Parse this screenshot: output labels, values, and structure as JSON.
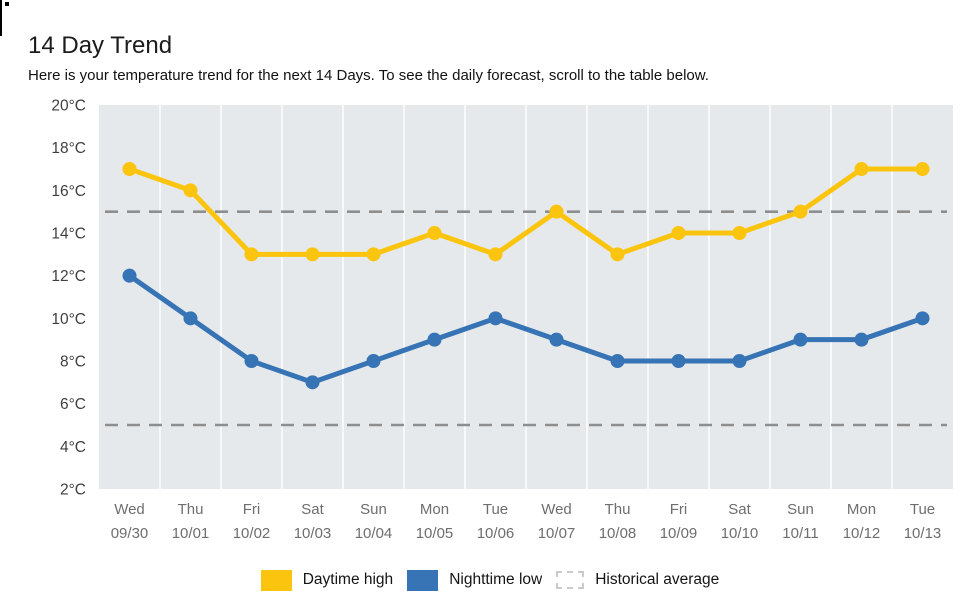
{
  "header": {
    "title": "14 Day Trend",
    "subtitle": "Here is your temperature trend for the next 14 Days. To see the daily forecast, scroll to the table below."
  },
  "legend": [
    {
      "label": "Daytime high",
      "type": "solid",
      "color": "#fbc40f"
    },
    {
      "label": "Nighttime low",
      "type": "solid",
      "color": "#3674b5"
    },
    {
      "label": "Historical average",
      "type": "dashed",
      "color": "#cbcbcb"
    }
  ],
  "chart_data": {
    "type": "line",
    "title": "14 Day Trend",
    "categories": [
      {
        "day": "Wed",
        "date": "09/30"
      },
      {
        "day": "Thu",
        "date": "10/01"
      },
      {
        "day": "Fri",
        "date": "10/02"
      },
      {
        "day": "Sat",
        "date": "10/03"
      },
      {
        "day": "Sun",
        "date": "10/04"
      },
      {
        "day": "Mon",
        "date": "10/05"
      },
      {
        "day": "Tue",
        "date": "10/06"
      },
      {
        "day": "Wed",
        "date": "10/07"
      },
      {
        "day": "Thu",
        "date": "10/08"
      },
      {
        "day": "Fri",
        "date": "10/09"
      },
      {
        "day": "Sat",
        "date": "10/10"
      },
      {
        "day": "Sun",
        "date": "10/11"
      },
      {
        "day": "Mon",
        "date": "10/12"
      },
      {
        "day": "Tue",
        "date": "10/13"
      }
    ],
    "series": [
      {
        "name": "Daytime high",
        "color": "#fbc40f",
        "values": [
          17,
          16,
          13,
          13,
          13,
          14,
          13,
          15,
          13,
          14,
          14,
          15,
          17,
          17
        ]
      },
      {
        "name": "Nighttime low",
        "color": "#3674b5",
        "values": [
          12,
          10,
          8,
          7,
          8,
          9,
          10,
          9,
          8,
          8,
          8,
          9,
          9,
          10
        ]
      }
    ],
    "historical_average": {
      "name": "Historical average",
      "color": "#8e8e8e",
      "values": [
        15,
        5
      ]
    },
    "y_axis": {
      "min": 2,
      "max": 20,
      "step": 2,
      "unit": "°C",
      "tick_labels": [
        "20°C",
        "18°C",
        "16°C",
        "14°C",
        "12°C",
        "10°C",
        "8°C",
        "6°C",
        "4°C",
        "2°C"
      ],
      "tick_color": "#3f3f3f"
    },
    "x_axis": {
      "tick_color": "#6e6e6e"
    },
    "plot_background": "#e6e9eb",
    "gridlines": {
      "orientation": "vertical",
      "color": "#f7f8f9"
    },
    "legend_position": "bottom",
    "ylim": [
      2,
      20
    ]
  }
}
